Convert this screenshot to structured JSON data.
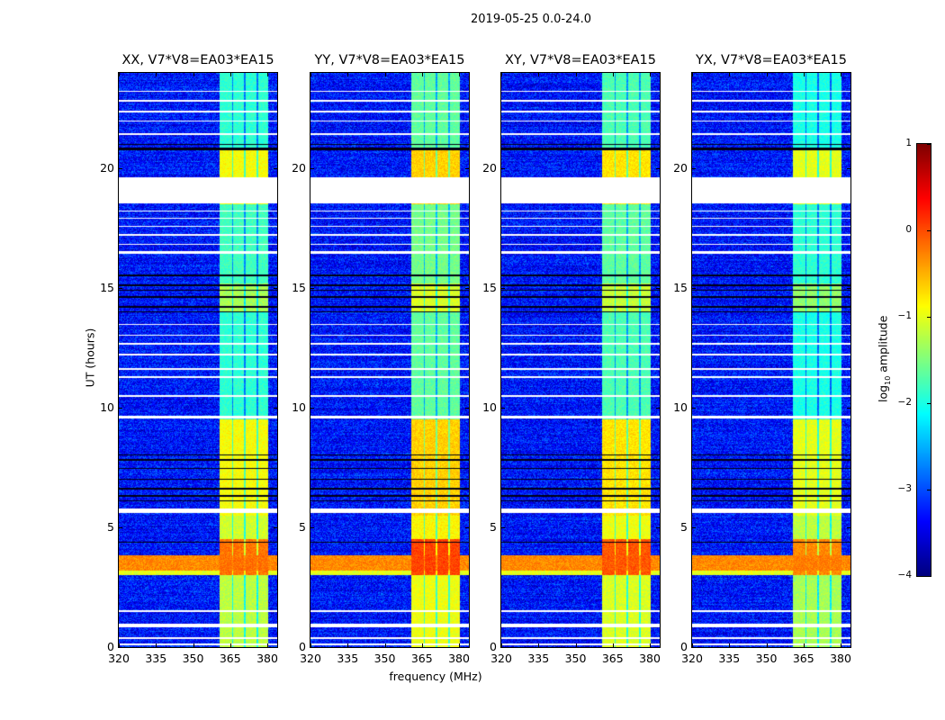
{
  "suptitle": "2019-05-25 0.0-24.0",
  "xlabel": "frequency (MHz)",
  "ylabel": "UT (hours)",
  "colorbar": {
    "label_main": "log",
    "label_sub": "10",
    "label_rest": " amplitude",
    "range": [
      -4,
      1
    ],
    "ticks": [
      "1",
      "0",
      "−1",
      "−2",
      "−3",
      "−4"
    ],
    "tick_values": [
      1,
      0,
      -1,
      -2,
      -3,
      -4
    ],
    "colormap": "jet"
  },
  "chart_data": [
    {
      "type": "heatmap",
      "title": "XX, V7*V8=EA03*EA15",
      "xlim": [
        320,
        384
      ],
      "ylim": [
        0,
        24
      ],
      "seed": 11,
      "band_gain": 0.0
    },
    {
      "type": "heatmap",
      "title": "YY, V7*V8=EA03*EA15",
      "xlim": [
        320,
        384
      ],
      "ylim": [
        0,
        24
      ],
      "seed": 23,
      "band_gain": 0.25
    },
    {
      "type": "heatmap",
      "title": "XY, V7*V8=EA03*EA15",
      "xlim": [
        320,
        384
      ],
      "ylim": [
        0,
        24
      ],
      "seed": 37,
      "band_gain": 0.15
    },
    {
      "type": "heatmap",
      "title": "YX, V7*V8=EA03*EA15",
      "xlim": [
        320,
        384
      ],
      "ylim": [
        0,
        24
      ],
      "seed": 51,
      "band_gain": -0.1
    }
  ],
  "axes": {
    "xticks": [
      "320",
      "335",
      "350",
      "365",
      "380"
    ],
    "xtick_values": [
      320,
      335,
      350,
      365,
      380
    ],
    "yticks": [
      "0",
      "5",
      "10",
      "15",
      "20"
    ],
    "ytick_values": [
      0,
      5,
      10,
      15,
      20
    ]
  },
  "model": {
    "background_level": -3.3,
    "band": {
      "start": 360.8,
      "end": 380.4,
      "gaps": [
        366,
        371,
        376
      ]
    },
    "band_time_levels": [
      {
        "start": 0,
        "end": 3.0,
        "level": -1.2
      },
      {
        "start": 3.0,
        "end": 4.5,
        "level": -0.2
      },
      {
        "start": 4.5,
        "end": 5.5,
        "level": -1.1
      },
      {
        "start": 5.5,
        "end": 9.5,
        "level": -0.9
      },
      {
        "start": 9.5,
        "end": 14.0,
        "level": -1.9
      },
      {
        "start": 14.0,
        "end": 15.2,
        "level": -1.3
      },
      {
        "start": 15.2,
        "end": 18.5,
        "level": -1.8
      },
      {
        "start": 18.5,
        "end": 20.8,
        "level": -0.9
      },
      {
        "start": 20.8,
        "end": 24,
        "level": -1.9
      }
    ],
    "broadband_rfi": [
      {
        "start": 3.0,
        "end": 3.2,
        "level": -1.0
      },
      {
        "start": 3.2,
        "end": 3.85,
        "level": -0.3
      }
    ],
    "flagged_rows": [
      [
        0.08,
        0.14
      ],
      [
        0.32,
        0.4
      ],
      [
        0.82,
        0.96
      ],
      [
        1.45,
        1.55
      ],
      [
        5.62,
        5.8
      ],
      [
        9.55,
        9.68
      ],
      [
        10.45,
        10.52
      ],
      [
        11.25,
        11.32
      ],
      [
        11.6,
        11.66
      ],
      [
        12.2,
        12.26
      ],
      [
        12.65,
        12.72
      ],
      [
        13.0,
        13.06
      ],
      [
        13.45,
        13.5
      ],
      [
        16.45,
        16.55
      ],
      [
        16.8,
        16.86
      ],
      [
        17.2,
        17.26
      ],
      [
        17.55,
        17.6
      ],
      [
        17.9,
        17.96
      ],
      [
        18.2,
        18.26
      ],
      [
        18.55,
        19.65
      ],
      [
        21.4,
        21.48
      ],
      [
        21.95,
        22.02
      ],
      [
        22.35,
        22.42
      ],
      [
        22.8,
        22.86
      ],
      [
        23.2,
        23.26
      ]
    ],
    "dark_rows": [
      [
        4.38,
        4.42
      ],
      [
        6.08,
        6.14
      ],
      [
        6.3,
        6.34
      ],
      [
        6.6,
        6.66
      ],
      [
        7.0,
        7.05
      ],
      [
        7.45,
        7.5
      ],
      [
        7.8,
        7.85
      ],
      [
        8.0,
        8.05
      ],
      [
        13.98,
        14.05
      ],
      [
        14.2,
        14.25
      ],
      [
        14.6,
        14.66
      ],
      [
        14.9,
        14.95
      ],
      [
        15.1,
        15.15
      ],
      [
        15.5,
        15.56
      ],
      [
        20.78,
        20.86
      ],
      [
        21.0,
        21.04
      ]
    ]
  }
}
